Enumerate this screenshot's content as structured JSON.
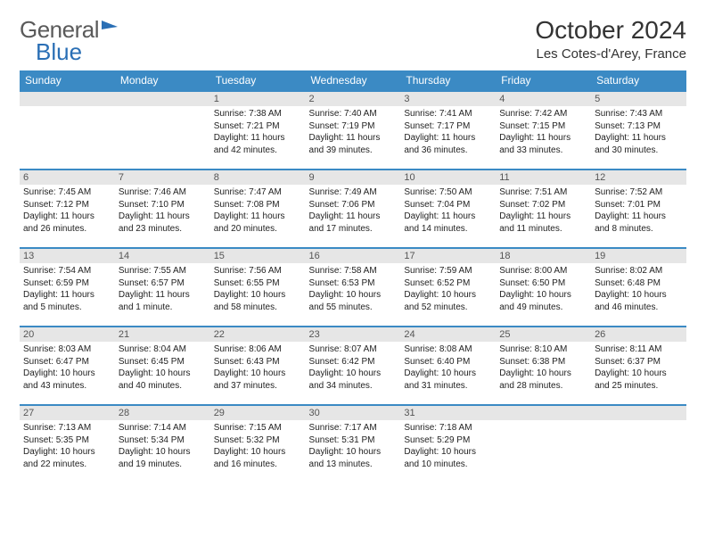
{
  "brand": {
    "part1": "General",
    "part2": "Blue"
  },
  "title": "October 2024",
  "location": "Les Cotes-d'Arey, France",
  "columns": [
    "Sunday",
    "Monday",
    "Tuesday",
    "Wednesday",
    "Thursday",
    "Friday",
    "Saturday"
  ],
  "colors": {
    "header_bg": "#3b8ac4",
    "header_text": "#ffffff",
    "row_divider": "#3b8ac4",
    "daynum_bg": "#e6e6e6",
    "logo_gray": "#5a5a5a",
    "logo_blue": "#2a6fb5"
  },
  "weeks": [
    [
      {
        "day": "",
        "lines": []
      },
      {
        "day": "",
        "lines": []
      },
      {
        "day": "1",
        "lines": [
          "Sunrise: 7:38 AM",
          "Sunset: 7:21 PM",
          "Daylight: 11 hours and 42 minutes."
        ]
      },
      {
        "day": "2",
        "lines": [
          "Sunrise: 7:40 AM",
          "Sunset: 7:19 PM",
          "Daylight: 11 hours and 39 minutes."
        ]
      },
      {
        "day": "3",
        "lines": [
          "Sunrise: 7:41 AM",
          "Sunset: 7:17 PM",
          "Daylight: 11 hours and 36 minutes."
        ]
      },
      {
        "day": "4",
        "lines": [
          "Sunrise: 7:42 AM",
          "Sunset: 7:15 PM",
          "Daylight: 11 hours and 33 minutes."
        ]
      },
      {
        "day": "5",
        "lines": [
          "Sunrise: 7:43 AM",
          "Sunset: 7:13 PM",
          "Daylight: 11 hours and 30 minutes."
        ]
      }
    ],
    [
      {
        "day": "6",
        "lines": [
          "Sunrise: 7:45 AM",
          "Sunset: 7:12 PM",
          "Daylight: 11 hours and 26 minutes."
        ]
      },
      {
        "day": "7",
        "lines": [
          "Sunrise: 7:46 AM",
          "Sunset: 7:10 PM",
          "Daylight: 11 hours and 23 minutes."
        ]
      },
      {
        "day": "8",
        "lines": [
          "Sunrise: 7:47 AM",
          "Sunset: 7:08 PM",
          "Daylight: 11 hours and 20 minutes."
        ]
      },
      {
        "day": "9",
        "lines": [
          "Sunrise: 7:49 AM",
          "Sunset: 7:06 PM",
          "Daylight: 11 hours and 17 minutes."
        ]
      },
      {
        "day": "10",
        "lines": [
          "Sunrise: 7:50 AM",
          "Sunset: 7:04 PM",
          "Daylight: 11 hours and 14 minutes."
        ]
      },
      {
        "day": "11",
        "lines": [
          "Sunrise: 7:51 AM",
          "Sunset: 7:02 PM",
          "Daylight: 11 hours and 11 minutes."
        ]
      },
      {
        "day": "12",
        "lines": [
          "Sunrise: 7:52 AM",
          "Sunset: 7:01 PM",
          "Daylight: 11 hours and 8 minutes."
        ]
      }
    ],
    [
      {
        "day": "13",
        "lines": [
          "Sunrise: 7:54 AM",
          "Sunset: 6:59 PM",
          "Daylight: 11 hours and 5 minutes."
        ]
      },
      {
        "day": "14",
        "lines": [
          "Sunrise: 7:55 AM",
          "Sunset: 6:57 PM",
          "Daylight: 11 hours and 1 minute."
        ]
      },
      {
        "day": "15",
        "lines": [
          "Sunrise: 7:56 AM",
          "Sunset: 6:55 PM",
          "Daylight: 10 hours and 58 minutes."
        ]
      },
      {
        "day": "16",
        "lines": [
          "Sunrise: 7:58 AM",
          "Sunset: 6:53 PM",
          "Daylight: 10 hours and 55 minutes."
        ]
      },
      {
        "day": "17",
        "lines": [
          "Sunrise: 7:59 AM",
          "Sunset: 6:52 PM",
          "Daylight: 10 hours and 52 minutes."
        ]
      },
      {
        "day": "18",
        "lines": [
          "Sunrise: 8:00 AM",
          "Sunset: 6:50 PM",
          "Daylight: 10 hours and 49 minutes."
        ]
      },
      {
        "day": "19",
        "lines": [
          "Sunrise: 8:02 AM",
          "Sunset: 6:48 PM",
          "Daylight: 10 hours and 46 minutes."
        ]
      }
    ],
    [
      {
        "day": "20",
        "lines": [
          "Sunrise: 8:03 AM",
          "Sunset: 6:47 PM",
          "Daylight: 10 hours and 43 minutes."
        ]
      },
      {
        "day": "21",
        "lines": [
          "Sunrise: 8:04 AM",
          "Sunset: 6:45 PM",
          "Daylight: 10 hours and 40 minutes."
        ]
      },
      {
        "day": "22",
        "lines": [
          "Sunrise: 8:06 AM",
          "Sunset: 6:43 PM",
          "Daylight: 10 hours and 37 minutes."
        ]
      },
      {
        "day": "23",
        "lines": [
          "Sunrise: 8:07 AM",
          "Sunset: 6:42 PM",
          "Daylight: 10 hours and 34 minutes."
        ]
      },
      {
        "day": "24",
        "lines": [
          "Sunrise: 8:08 AM",
          "Sunset: 6:40 PM",
          "Daylight: 10 hours and 31 minutes."
        ]
      },
      {
        "day": "25",
        "lines": [
          "Sunrise: 8:10 AM",
          "Sunset: 6:38 PM",
          "Daylight: 10 hours and 28 minutes."
        ]
      },
      {
        "day": "26",
        "lines": [
          "Sunrise: 8:11 AM",
          "Sunset: 6:37 PM",
          "Daylight: 10 hours and 25 minutes."
        ]
      }
    ],
    [
      {
        "day": "27",
        "lines": [
          "Sunrise: 7:13 AM",
          "Sunset: 5:35 PM",
          "Daylight: 10 hours and 22 minutes."
        ]
      },
      {
        "day": "28",
        "lines": [
          "Sunrise: 7:14 AM",
          "Sunset: 5:34 PM",
          "Daylight: 10 hours and 19 minutes."
        ]
      },
      {
        "day": "29",
        "lines": [
          "Sunrise: 7:15 AM",
          "Sunset: 5:32 PM",
          "Daylight: 10 hours and 16 minutes."
        ]
      },
      {
        "day": "30",
        "lines": [
          "Sunrise: 7:17 AM",
          "Sunset: 5:31 PM",
          "Daylight: 10 hours and 13 minutes."
        ]
      },
      {
        "day": "31",
        "lines": [
          "Sunrise: 7:18 AM",
          "Sunset: 5:29 PM",
          "Daylight: 10 hours and 10 minutes."
        ]
      },
      {
        "day": "",
        "lines": []
      },
      {
        "day": "",
        "lines": []
      }
    ]
  ]
}
